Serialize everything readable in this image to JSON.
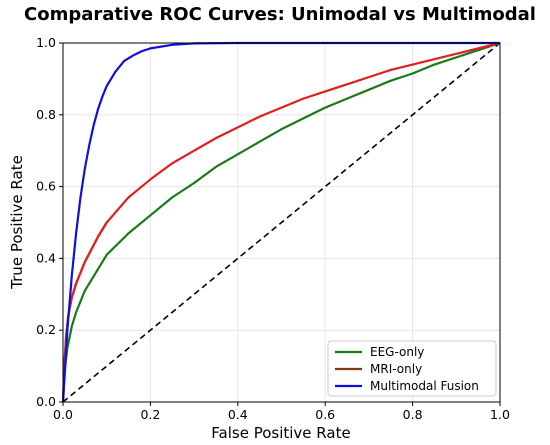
{
  "chart_data": {
    "type": "line",
    "title": "Comparative ROC Curves: Unimodal vs Multimodal",
    "xlabel": "False Positive Rate",
    "ylabel": "True Positive Rate",
    "xlim": [
      0.0,
      1.0
    ],
    "ylim": [
      0.0,
      1.0
    ],
    "grid": true,
    "legend_position": "lower-right",
    "x_ticks": [
      "0.0",
      "0.2",
      "0.4",
      "0.6",
      "0.8",
      "1.0"
    ],
    "y_ticks": [
      "0.0",
      "0.2",
      "0.4",
      "0.6",
      "0.8",
      "1.0"
    ],
    "series": [
      {
        "name": "EEG-only",
        "color": "#1a7a1a",
        "points": [
          [
            0.0,
            0.0
          ],
          [
            0.005,
            0.1
          ],
          [
            0.01,
            0.15
          ],
          [
            0.02,
            0.21
          ],
          [
            0.03,
            0.25
          ],
          [
            0.05,
            0.31
          ],
          [
            0.075,
            0.36
          ],
          [
            0.1,
            0.41
          ],
          [
            0.15,
            0.47
          ],
          [
            0.2,
            0.52
          ],
          [
            0.25,
            0.57
          ],
          [
            0.3,
            0.61
          ],
          [
            0.35,
            0.655
          ],
          [
            0.4,
            0.69
          ],
          [
            0.45,
            0.725
          ],
          [
            0.5,
            0.76
          ],
          [
            0.55,
            0.79
          ],
          [
            0.6,
            0.82
          ],
          [
            0.65,
            0.845
          ],
          [
            0.7,
            0.87
          ],
          [
            0.75,
            0.895
          ],
          [
            0.8,
            0.915
          ],
          [
            0.85,
            0.94
          ],
          [
            0.9,
            0.96
          ],
          [
            0.95,
            0.98
          ],
          [
            1.0,
            1.0
          ]
        ]
      },
      {
        "name": "MRI-only",
        "color": "#7a3b12",
        "points": [
          [
            0.0,
            0.0
          ],
          [
            0.003,
            0.1
          ],
          [
            0.007,
            0.18
          ],
          [
            0.012,
            0.24
          ],
          [
            0.02,
            0.29
          ],
          [
            0.03,
            0.33
          ],
          [
            0.05,
            0.39
          ],
          [
            0.08,
            0.46
          ],
          [
            0.1,
            0.5
          ]
        ]
      },
      {
        "name": "",
        "color": "#e02020",
        "points": [
          [
            0.0,
            0.0
          ],
          [
            0.003,
            0.1
          ],
          [
            0.007,
            0.18
          ],
          [
            0.012,
            0.24
          ],
          [
            0.02,
            0.29
          ],
          [
            0.03,
            0.33
          ],
          [
            0.05,
            0.39
          ],
          [
            0.08,
            0.46
          ],
          [
            0.1,
            0.5
          ],
          [
            0.15,
            0.57
          ],
          [
            0.2,
            0.62
          ],
          [
            0.25,
            0.665
          ],
          [
            0.3,
            0.7
          ],
          [
            0.35,
            0.735
          ],
          [
            0.4,
            0.765
          ],
          [
            0.45,
            0.795
          ],
          [
            0.5,
            0.82
          ],
          [
            0.55,
            0.845
          ],
          [
            0.6,
            0.865
          ],
          [
            0.65,
            0.885
          ],
          [
            0.7,
            0.905
          ],
          [
            0.75,
            0.925
          ],
          [
            0.8,
            0.94
          ],
          [
            0.85,
            0.955
          ],
          [
            0.9,
            0.97
          ],
          [
            0.95,
            0.985
          ],
          [
            1.0,
            1.0
          ]
        ]
      },
      {
        "name": "Multimodal Fusion",
        "color": "#1010dd",
        "points": [
          [
            0.0,
            0.0
          ],
          [
            0.01,
            0.2
          ],
          [
            0.02,
            0.35
          ],
          [
            0.03,
            0.47
          ],
          [
            0.04,
            0.57
          ],
          [
            0.05,
            0.65
          ],
          [
            0.06,
            0.715
          ],
          [
            0.07,
            0.77
          ],
          [
            0.08,
            0.815
          ],
          [
            0.09,
            0.85
          ],
          [
            0.1,
            0.88
          ],
          [
            0.12,
            0.92
          ],
          [
            0.14,
            0.95
          ],
          [
            0.16,
            0.965
          ],
          [
            0.18,
            0.977
          ],
          [
            0.2,
            0.985
          ],
          [
            0.25,
            0.995
          ],
          [
            0.3,
            0.999
          ],
          [
            0.4,
            1.0
          ],
          [
            0.6,
            1.0
          ],
          [
            0.8,
            1.0
          ],
          [
            1.0,
            1.0
          ]
        ]
      }
    ],
    "reference_line": {
      "style": "dashed",
      "color": "#000000",
      "points": [
        [
          0.0,
          0.0
        ],
        [
          1.0,
          1.0
        ]
      ]
    }
  }
}
